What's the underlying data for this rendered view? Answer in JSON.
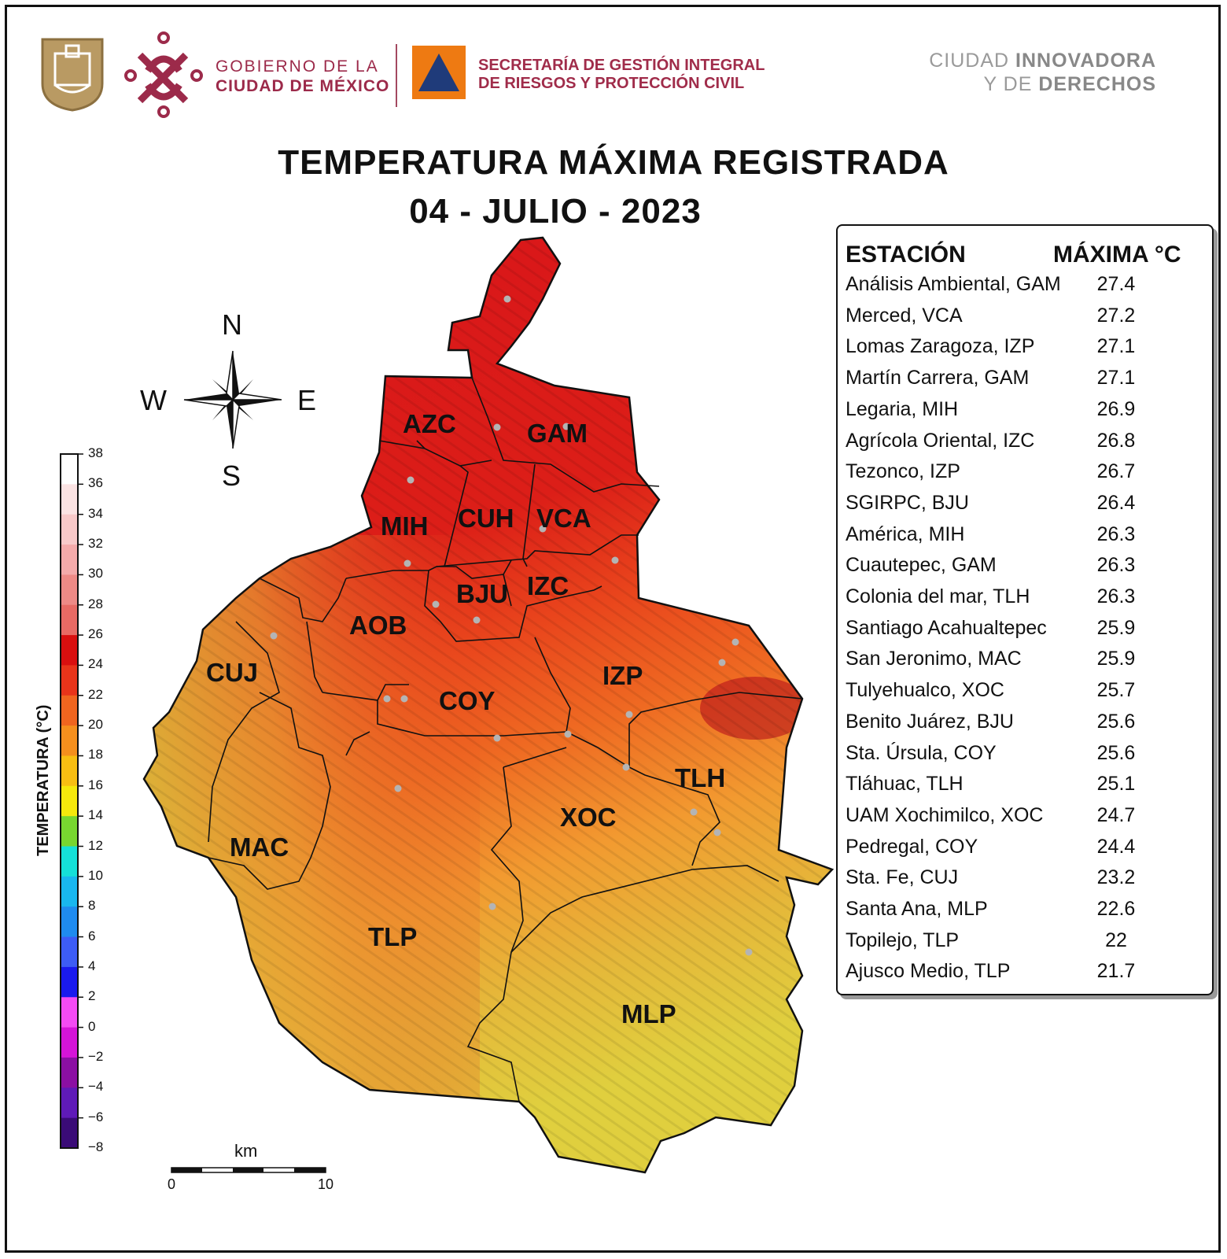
{
  "header": {
    "gov_line1": "GOBIERNO DE LA",
    "gov_line2": "CIUDAD DE MÉXICO",
    "sgirpc_line1": "SECRETARÍA DE GESTIÓN INTEGRAL",
    "sgirpc_line2": "DE RIESGOS Y PROTECCIÓN CIVIL",
    "slogan_a": "CIUDAD ",
    "slogan_b": "INNOVADORA",
    "slogan_c": "Y DE ",
    "slogan_d": "DERECHOS"
  },
  "title_line1": "TEMPERATURA MÁXIMA REGISTRADA",
  "title_line2": "04 - JULIO - 2023",
  "compass": {
    "n": "N",
    "s": "S",
    "e": "E",
    "w": "W"
  },
  "legend": {
    "title": "TEMPERATURA (°C)",
    "ticks": [
      "38",
      "36",
      "34",
      "32",
      "30",
      "28",
      "26",
      "24",
      "22",
      "20",
      "18",
      "16",
      "14",
      "12",
      "10",
      "8",
      "6",
      "4",
      "2",
      "0",
      "−2",
      "−4",
      "−6",
      "−8"
    ],
    "colors": [
      "#ffffff",
      "#fbe3e3",
      "#f8c9c9",
      "#f4aaaa",
      "#ee8a86",
      "#e86a64",
      "#d90f0f",
      "#e8341a",
      "#f0651f",
      "#f58f1d",
      "#f8be12",
      "#f5e80c",
      "#78d630",
      "#15e0d8",
      "#19b7ef",
      "#1f8bef",
      "#3d5cf5",
      "#1a1aee",
      "#f44bf4",
      "#d514d8",
      "#8b0fa3",
      "#5f1ab8",
      "#3a0b77",
      "#101010"
    ]
  },
  "scale": {
    "unit": "km",
    "min": "0",
    "max": "10"
  },
  "table": {
    "header_station": "ESTACIÓN",
    "header_value": "MÁXIMA °C",
    "rows": [
      {
        "station": "Análisis Ambiental, GAM",
        "value": "27.4"
      },
      {
        "station": "Merced, VCA",
        "value": "27.2"
      },
      {
        "station": "Lomas Zaragoza, IZP",
        "value": "27.1"
      },
      {
        "station": "Martín Carrera, GAM",
        "value": "27.1"
      },
      {
        "station": "Legaria, MIH",
        "value": "26.9"
      },
      {
        "station": "Agrícola Oriental, IZC",
        "value": "26.8"
      },
      {
        "station": "Tezonco, IZP",
        "value": "26.7"
      },
      {
        "station": "SGIRPC, BJU",
        "value": "26.4"
      },
      {
        "station": "América, MIH",
        "value": "26.3"
      },
      {
        "station": "Cuautepec, GAM",
        "value": "26.3"
      },
      {
        "station": "Colonia del mar, TLH",
        "value": "26.3"
      },
      {
        "station": "Santiago Acahualtepec",
        "value": "25.9"
      },
      {
        "station": "San Jeronimo, MAC",
        "value": "25.9"
      },
      {
        "station": "Tulyehualco, XOC",
        "value": "25.7"
      },
      {
        "station": "Benito Juárez, BJU",
        "value": "25.6"
      },
      {
        "station": "Sta. Úrsula, COY",
        "value": "25.6"
      },
      {
        "station": "Tláhuac, TLH",
        "value": "25.1"
      },
      {
        "station": "UAM Xochimilco, XOC",
        "value": "24.7"
      },
      {
        "station": "Pedregal, COY",
        "value": "24.4"
      },
      {
        "station": "Sta. Fe, CUJ",
        "value": "23.2"
      },
      {
        "station": "Santa Ana, MLP",
        "value": "22.6"
      },
      {
        "station": "Topilejo, TLP",
        "value": "22"
      },
      {
        "station": "Ajusco Medio, TLP",
        "value": "21.7"
      }
    ]
  },
  "alcaldias": [
    "AZC",
    "GAM",
    "MIH",
    "CUH",
    "VCA",
    "BJU",
    "IZC",
    "AOB",
    "CUJ",
    "COY",
    "IZP",
    "TLH",
    "XOC",
    "MAC",
    "TLP",
    "MLP"
  ]
}
